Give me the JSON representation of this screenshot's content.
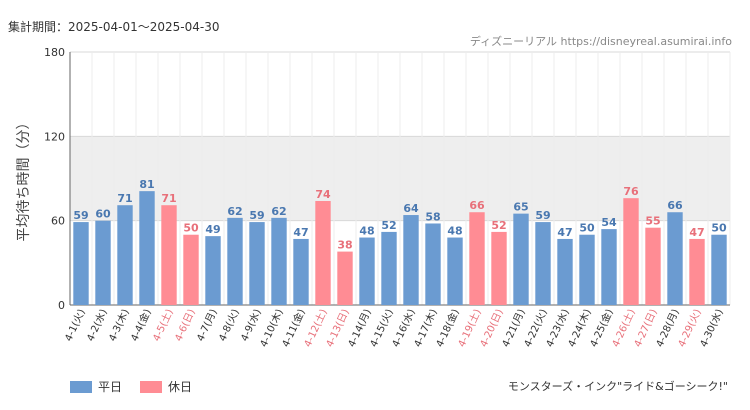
{
  "period_label": "集計期間：2025-04-01～2025-04-30",
  "source_label": "ディズニーリアル https://disneyreal.asumirai.info",
  "attraction_label": "モンスターズ・インク\"ライド&ゴーシーク!\"",
  "legend": {
    "weekday": "平日",
    "holiday": "休日"
  },
  "colors": {
    "weekday": "#6b9bd1",
    "holiday": "#ff8c94",
    "weekday_label": "#4a78b0",
    "holiday_label": "#e8707a",
    "band": "#eeeeee"
  },
  "chart_data": {
    "type": "bar",
    "ylabel": "平均待ち時間（分）",
    "ylim": [
      0,
      180
    ],
    "yticks": [
      0,
      60,
      120,
      180
    ],
    "shaded_band": [
      60,
      120
    ],
    "categories": [
      "4-1(火)",
      "4-2(水)",
      "4-3(木)",
      "4-4(金)",
      "4-5(土)",
      "4-6(日)",
      "4-7(月)",
      "4-8(火)",
      "4-9(水)",
      "4-10(木)",
      "4-11(金)",
      "4-12(土)",
      "4-13(日)",
      "4-14(月)",
      "4-15(火)",
      "4-16(水)",
      "4-17(木)",
      "4-18(金)",
      "4-19(土)",
      "4-20(日)",
      "4-21(月)",
      "4-22(火)",
      "4-23(水)",
      "4-24(木)",
      "4-25(金)",
      "4-26(土)",
      "4-27(日)",
      "4-28(月)",
      "4-29(火)",
      "4-30(水)"
    ],
    "values": [
      59,
      60,
      71,
      81,
      71,
      50,
      49,
      62,
      59,
      62,
      47,
      74,
      38,
      48,
      52,
      64,
      58,
      48,
      66,
      52,
      65,
      59,
      47,
      50,
      54,
      76,
      55,
      66,
      47,
      50
    ],
    "holiday": [
      false,
      false,
      false,
      false,
      true,
      true,
      false,
      false,
      false,
      false,
      false,
      true,
      true,
      false,
      false,
      false,
      false,
      false,
      true,
      true,
      false,
      false,
      false,
      false,
      false,
      true,
      true,
      false,
      true,
      false
    ],
    "series": [
      {
        "name": "平日"
      },
      {
        "name": "休日"
      }
    ]
  }
}
